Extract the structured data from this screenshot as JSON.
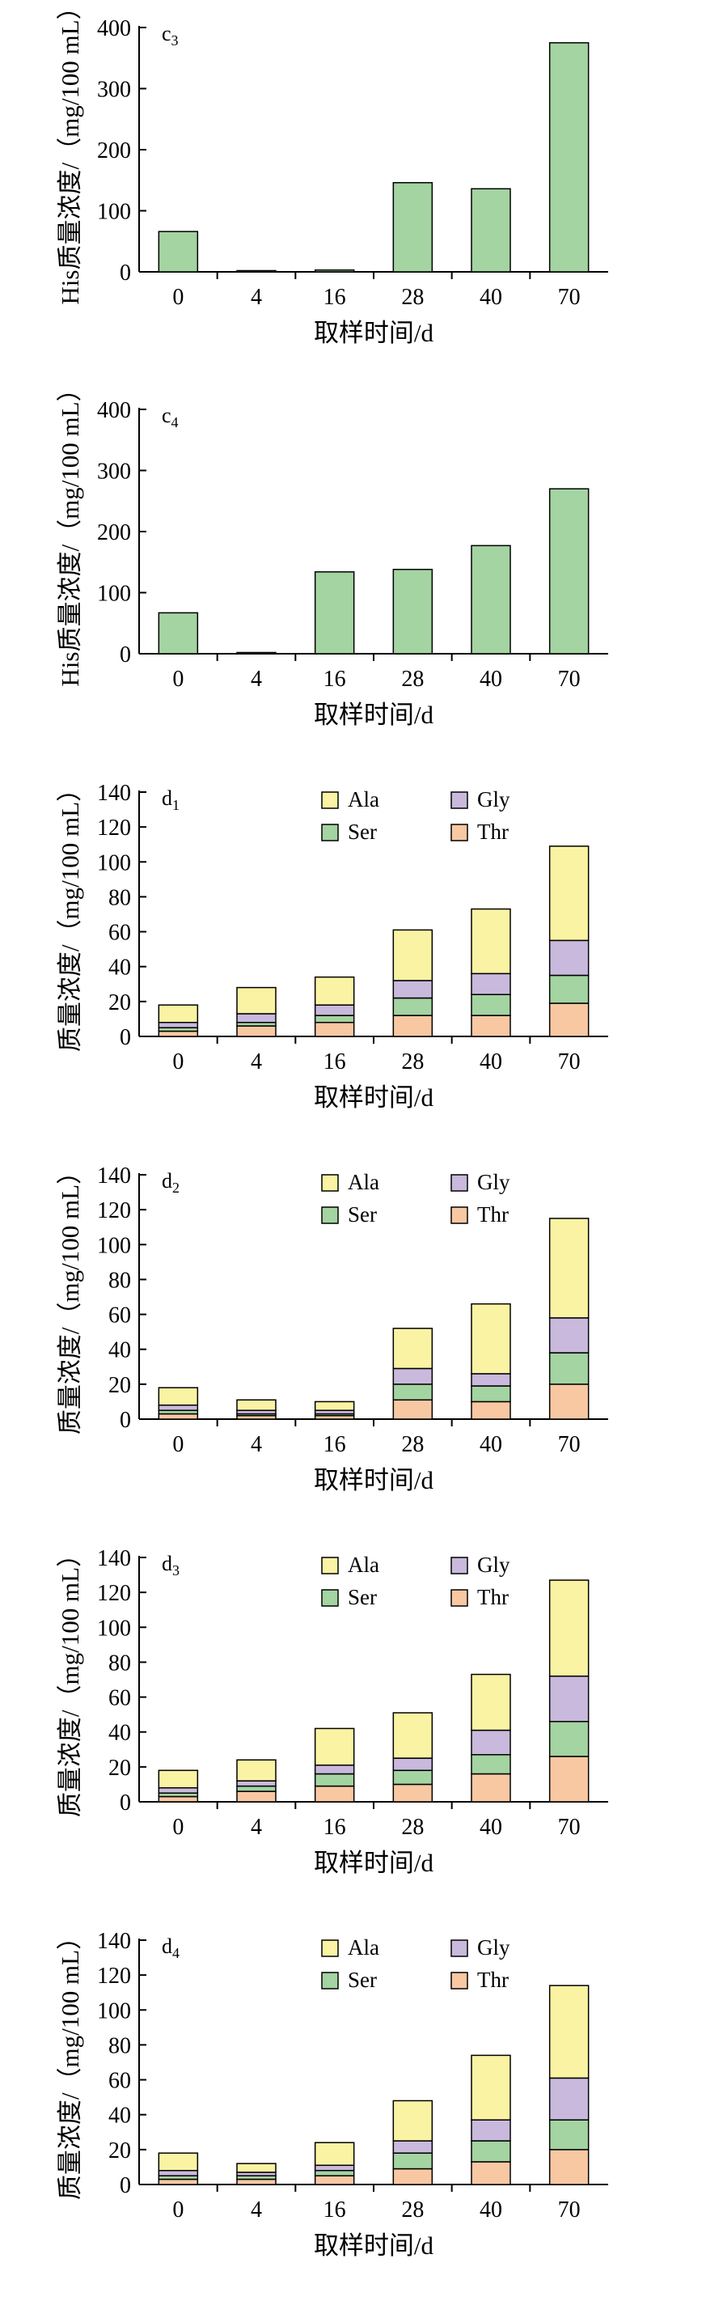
{
  "colors": {
    "his_bar": "#a3d4a1",
    "Ala": "#f9f3a3",
    "Gly": "#c9b9dc",
    "Ser": "#a3d4a1",
    "Thr": "#f8c8a3"
  },
  "chart_data": [
    {
      "id": "c3",
      "type": "bar",
      "panel_label": "c",
      "panel_sub": "3",
      "ylabel": "His质量浓度/（mg/100 mL）",
      "xlabel": "取样时间/d",
      "categories": [
        "0",
        "4",
        "16",
        "28",
        "40",
        "70"
      ],
      "yticks": [
        0,
        100,
        200,
        300,
        400
      ],
      "ylim": [
        0,
        400
      ],
      "values": [
        66,
        2,
        3,
        146,
        136,
        375
      ],
      "legend": null
    },
    {
      "id": "c4",
      "type": "bar",
      "panel_label": "c",
      "panel_sub": "4",
      "ylabel": "His质量浓度/（mg/100 mL）",
      "xlabel": "取样时间/d",
      "categories": [
        "0",
        "4",
        "16",
        "28",
        "40",
        "70"
      ],
      "yticks": [
        0,
        100,
        200,
        300,
        400
      ],
      "ylim": [
        0,
        400
      ],
      "values": [
        67,
        2,
        134,
        138,
        177,
        270
      ],
      "legend": null
    },
    {
      "id": "d1",
      "type": "stacked-bar",
      "panel_label": "d",
      "panel_sub": "1",
      "ylabel": "质量浓度/（mg/100 mL）",
      "xlabel": "取样时间/d",
      "categories": [
        "0",
        "4",
        "16",
        "28",
        "40",
        "70"
      ],
      "yticks": [
        0,
        20,
        40,
        60,
        80,
        100,
        120,
        140
      ],
      "ylim": [
        0,
        140
      ],
      "series": [
        {
          "name": "Thr",
          "values": [
            3,
            6,
            8,
            12,
            12,
            19
          ]
        },
        {
          "name": "Ser",
          "values": [
            2,
            2,
            4,
            10,
            12,
            16
          ]
        },
        {
          "name": "Gly",
          "values": [
            3,
            5,
            6,
            10,
            12,
            20
          ]
        },
        {
          "name": "Ala",
          "values": [
            10,
            15,
            16,
            29,
            37,
            54
          ]
        }
      ],
      "legend": [
        "Ala",
        "Gly",
        "Ser",
        "Thr"
      ]
    },
    {
      "id": "d2",
      "type": "stacked-bar",
      "panel_label": "d",
      "panel_sub": "2",
      "ylabel": "质量浓度/（mg/100 mL）",
      "xlabel": "取样时间/d",
      "categories": [
        "0",
        "4",
        "16",
        "28",
        "40",
        "70"
      ],
      "yticks": [
        0,
        20,
        40,
        60,
        80,
        100,
        120,
        140
      ],
      "ylim": [
        0,
        140
      ],
      "series": [
        {
          "name": "Thr",
          "values": [
            3,
            2,
            2,
            11,
            10,
            20
          ]
        },
        {
          "name": "Ser",
          "values": [
            2,
            1,
            1,
            9,
            9,
            18
          ]
        },
        {
          "name": "Gly",
          "values": [
            3,
            2,
            2,
            9,
            7,
            20
          ]
        },
        {
          "name": "Ala",
          "values": [
            10,
            6,
            5,
            23,
            40,
            57
          ]
        }
      ],
      "legend": [
        "Ala",
        "Gly",
        "Ser",
        "Thr"
      ]
    },
    {
      "id": "d3",
      "type": "stacked-bar",
      "panel_label": "d",
      "panel_sub": "3",
      "ylabel": "质量浓度/（mg/100 mL）",
      "xlabel": "取样时间/d",
      "categories": [
        "0",
        "4",
        "16",
        "28",
        "40",
        "70"
      ],
      "yticks": [
        0,
        20,
        40,
        60,
        80,
        100,
        120,
        140
      ],
      "ylim": [
        0,
        140
      ],
      "series": [
        {
          "name": "Thr",
          "values": [
            3,
            6,
            9,
            10,
            16,
            26
          ]
        },
        {
          "name": "Ser",
          "values": [
            2,
            3,
            7,
            8,
            11,
            20
          ]
        },
        {
          "name": "Gly",
          "values": [
            3,
            3,
            5,
            7,
            14,
            26
          ]
        },
        {
          "name": "Ala",
          "values": [
            10,
            12,
            21,
            26,
            32,
            55
          ]
        }
      ],
      "legend": [
        "Ala",
        "Gly",
        "Ser",
        "Thr"
      ]
    },
    {
      "id": "d4",
      "type": "stacked-bar",
      "panel_label": "d",
      "panel_sub": "4",
      "ylabel": "质量浓度/（mg/100 mL）",
      "xlabel": "取样时间/d",
      "categories": [
        "0",
        "4",
        "16",
        "28",
        "40",
        "70"
      ],
      "yticks": [
        0,
        20,
        40,
        60,
        80,
        100,
        120,
        140
      ],
      "ylim": [
        0,
        140
      ],
      "series": [
        {
          "name": "Thr",
          "values": [
            3,
            3,
            5,
            9,
            13,
            20
          ]
        },
        {
          "name": "Ser",
          "values": [
            2,
            2,
            3,
            9,
            12,
            17
          ]
        },
        {
          "name": "Gly",
          "values": [
            3,
            2,
            3,
            7,
            12,
            24
          ]
        },
        {
          "name": "Ala",
          "values": [
            10,
            5,
            13,
            23,
            37,
            53
          ]
        }
      ],
      "legend": [
        "Ala",
        "Gly",
        "Ser",
        "Thr"
      ]
    }
  ]
}
